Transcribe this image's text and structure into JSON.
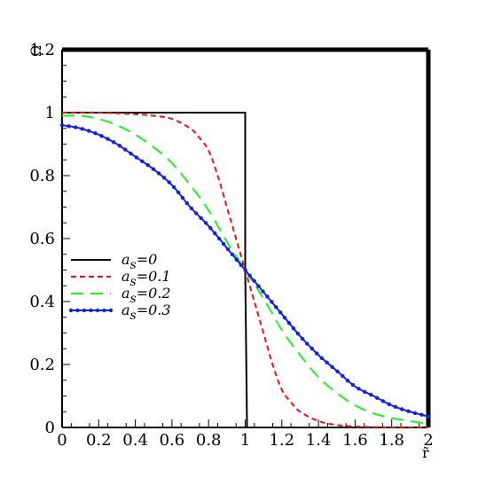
{
  "chart_data": {
    "type": "line",
    "title": "",
    "xlabel": "r̃",
    "ylabel": "Ω",
    "xlim": [
      0,
      2
    ],
    "ylim": [
      0,
      1.2
    ],
    "x_ticks": [
      "0",
      "0.2",
      "0.4",
      "0.6",
      "0.8",
      "1",
      "1.2",
      "1.4",
      "1.6",
      "1.8",
      "2"
    ],
    "y_ticks": [
      "0",
      "0.2",
      "0.4",
      "0.6",
      "0.8",
      "1",
      "1.2"
    ],
    "grid": false,
    "legend_position": "left",
    "series": [
      {
        "name": "a_s=0",
        "legend_base": "a",
        "legend_sub": "s",
        "legend_rest": "=0",
        "color": "#000000",
        "style": "solid",
        "markers": false,
        "x": [
          0,
          1.0,
          1.0,
          1.01,
          1.02,
          2.0
        ],
        "y": [
          1.0,
          1.0,
          0.5,
          0.0,
          0.0,
          0.0
        ]
      },
      {
        "name": "a_s=0.1",
        "legend_base": "a",
        "legend_sub": "s",
        "legend_rest": "=0.1",
        "color": "#ee1111",
        "style": "short-dash",
        "markers": false,
        "x": [
          0,
          0.2,
          0.4,
          0.5,
          0.6,
          0.7,
          0.75,
          0.8,
          0.85,
          0.9,
          0.95,
          1.0,
          1.05,
          1.1,
          1.15,
          1.2,
          1.25,
          1.3,
          1.4,
          1.5,
          1.6,
          1.8,
          2.0
        ],
        "y": [
          1.0,
          1.0,
          0.995,
          0.99,
          0.98,
          0.95,
          0.92,
          0.88,
          0.8,
          0.7,
          0.6,
          0.5,
          0.4,
          0.3,
          0.2,
          0.12,
          0.08,
          0.05,
          0.02,
          0.008,
          0.003,
          0.0,
          0.0
        ]
      },
      {
        "name": "a_s=0.2",
        "legend_base": "a",
        "legend_sub": "s",
        "legend_rest": "=0.2",
        "color": "#22ee22",
        "style": "long-dash",
        "markers": false,
        "x": [
          0,
          0.1,
          0.2,
          0.3,
          0.4,
          0.5,
          0.6,
          0.7,
          0.8,
          0.9,
          1.0,
          1.1,
          1.2,
          1.3,
          1.4,
          1.5,
          1.6,
          1.7,
          1.8,
          1.9,
          2.0
        ],
        "y": [
          0.99,
          0.99,
          0.98,
          0.96,
          0.93,
          0.89,
          0.84,
          0.77,
          0.69,
          0.59,
          0.5,
          0.41,
          0.31,
          0.23,
          0.16,
          0.11,
          0.07,
          0.045,
          0.03,
          0.02,
          0.012
        ]
      },
      {
        "name": "a_s=0.3",
        "legend_base": "a",
        "legend_sub": "s",
        "legend_rest": "=0.3",
        "color": "#1122dd",
        "style": "dotted-line-markers",
        "markers": true,
        "x": [
          0,
          0.1,
          0.2,
          0.3,
          0.4,
          0.5,
          0.6,
          0.7,
          0.8,
          0.9,
          1.0,
          1.1,
          1.2,
          1.3,
          1.4,
          1.5,
          1.6,
          1.7,
          1.8,
          1.9,
          2.0
        ],
        "y": [
          0.96,
          0.95,
          0.93,
          0.9,
          0.86,
          0.82,
          0.77,
          0.7,
          0.64,
          0.57,
          0.5,
          0.43,
          0.36,
          0.29,
          0.23,
          0.18,
          0.13,
          0.1,
          0.07,
          0.05,
          0.035
        ]
      }
    ]
  }
}
